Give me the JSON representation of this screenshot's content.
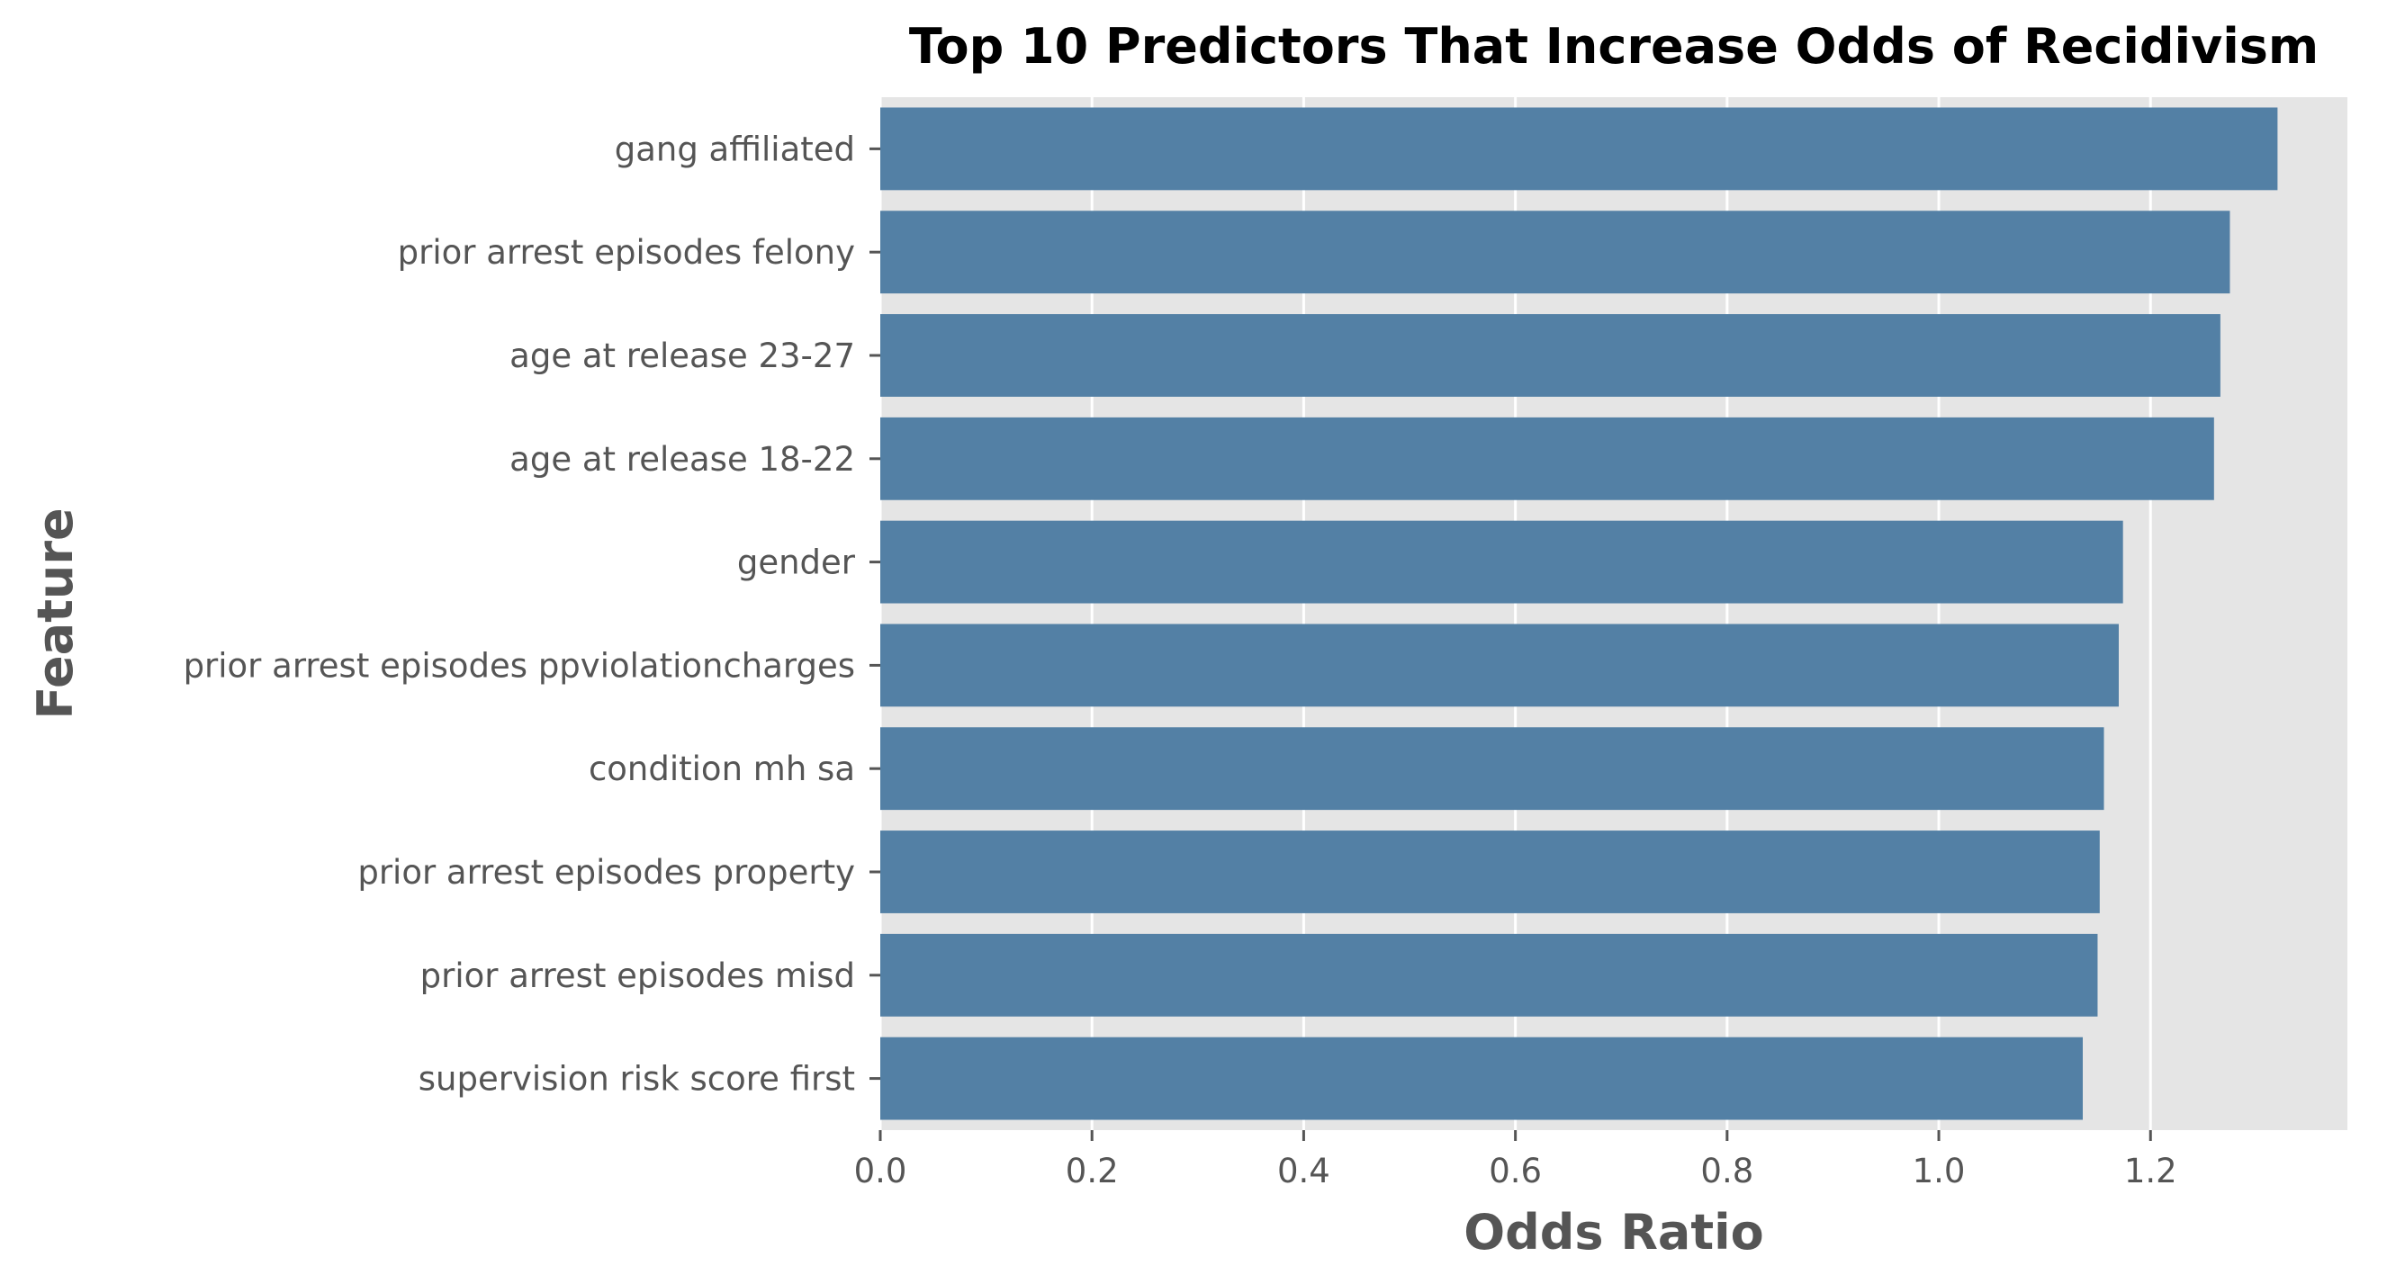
{
  "chart_data": {
    "type": "bar",
    "orientation": "horizontal",
    "title": "Top 10 Predictors That Increase Odds of Recidivism",
    "xlabel": "Odds Ratio",
    "ylabel": "Feature",
    "categories": [
      "gang affiliated",
      "prior arrest episodes felony",
      "age at release 23-27",
      "age at release 18-22",
      "gender",
      "prior arrest episodes ppviolationcharges",
      "condition mh sa",
      "prior arrest episodes property",
      "prior arrest episodes misd",
      "supervision risk score first"
    ],
    "values": [
      1.32,
      1.275,
      1.266,
      1.26,
      1.174,
      1.17,
      1.156,
      1.152,
      1.15,
      1.136
    ],
    "xlim": [
      0,
      1.386
    ],
    "xticks": [
      "0.0",
      "0.2",
      "0.4",
      "0.6",
      "0.8",
      "1.0",
      "1.2"
    ],
    "xtick_values": [
      0,
      0.2,
      0.4,
      0.6,
      0.8,
      1.0,
      1.2
    ],
    "grid": true,
    "colors": {
      "bar": "#5380a5",
      "plot_background": "#e5e5e5",
      "grid": "#ffffff",
      "text": "#555555",
      "title": "#000000"
    }
  }
}
